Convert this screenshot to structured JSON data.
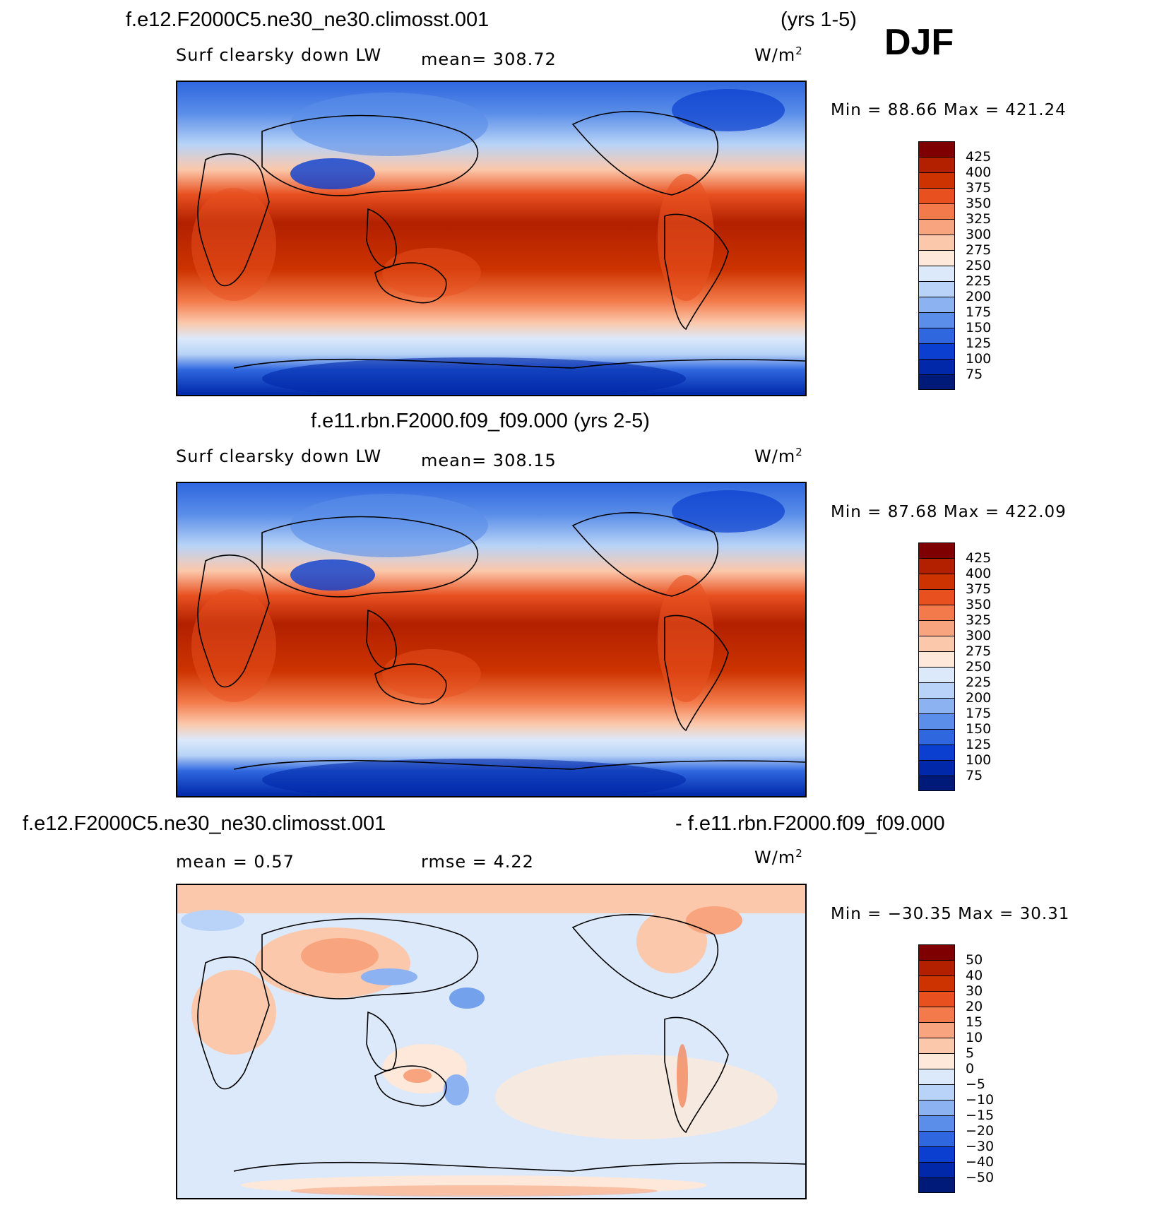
{
  "season": "DJF",
  "panel1": {
    "title": "f.e12.F2000C5.ne30_ne30.climosst.001",
    "years": "(yrs 1-5)",
    "variable": "Surf clearsky down LW",
    "mean_text": "mean=  308.72",
    "unit": "W/m",
    "unit_sup": "2",
    "minmax_text": "Min =   88.66 Max = 421.24",
    "colorbar_labels": [
      "425",
      "400",
      "375",
      "350",
      "325",
      "300",
      "275",
      "250",
      "225",
      "200",
      "175",
      "150",
      "125",
      "100",
      "75"
    ]
  },
  "panel2": {
    "title": "f.e11.rbn.F2000.f09_f09.000 (yrs 2-5)",
    "variable": "Surf clearsky down LW",
    "mean_text": "mean=  308.15",
    "unit": "W/m",
    "unit_sup": "2",
    "minmax_text": "Min =   87.68 Max = 422.09",
    "colorbar_labels": [
      "425",
      "400",
      "375",
      "350",
      "325",
      "300",
      "275",
      "250",
      "225",
      "200",
      "175",
      "150",
      "125",
      "100",
      "75"
    ]
  },
  "panel3": {
    "title_left": "f.e12.F2000C5.ne30_ne30.climosst.001",
    "title_right": "- f.e11.rbn.F2000.f09_f09.000",
    "mean_text": "mean =    0.57",
    "rmse_text": "rmse =    4.22",
    "unit": "W/m",
    "unit_sup": "2",
    "minmax_text": "Min = −30.35 Max =   30.31",
    "colorbar_labels": [
      "50",
      "40",
      "30",
      "20",
      "15",
      "10",
      "5",
      "0",
      "−5",
      "−10",
      "−15",
      "−20",
      "−30",
      "−40",
      "−50"
    ]
  },
  "colors": {
    "scale": [
      "#7f0000",
      "#b22000",
      "#cc3300",
      "#e85020",
      "#f37a4a",
      "#f8a57f",
      "#fbc8ab",
      "#fde8da",
      "#dce9fb",
      "#b8d3f7",
      "#8cb2f2",
      "#5a8ee8",
      "#2f67df",
      "#0a3fcf",
      "#0028a8",
      "#001a7a"
    ]
  }
}
